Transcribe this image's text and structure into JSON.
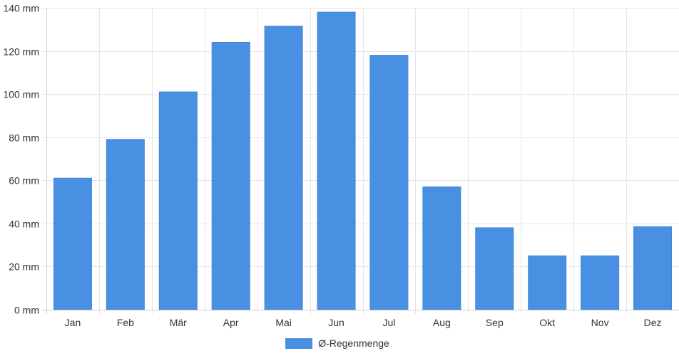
{
  "chart_data": {
    "type": "bar",
    "categories": [
      "Jan",
      "Feb",
      "Mär",
      "Apr",
      "Mai",
      "Jun",
      "Jul",
      "Aug",
      "Sep",
      "Okt",
      "Nov",
      "Dez"
    ],
    "series": [
      {
        "name": "Ø-Regenmenge",
        "values": [
          61,
          79,
          101,
          124,
          131.5,
          138,
          118,
          57,
          38,
          25,
          25,
          38.5
        ],
        "color": "#4a90e2"
      }
    ],
    "y_ticks": [
      "0 mm",
      "20 mm",
      "40 mm",
      "60 mm",
      "80 mm",
      "100 mm",
      "120 mm",
      "140 mm"
    ],
    "ylim": [
      0,
      140
    ],
    "y_unit": "mm",
    "grid": true,
    "legend_position": "bottom-center"
  }
}
